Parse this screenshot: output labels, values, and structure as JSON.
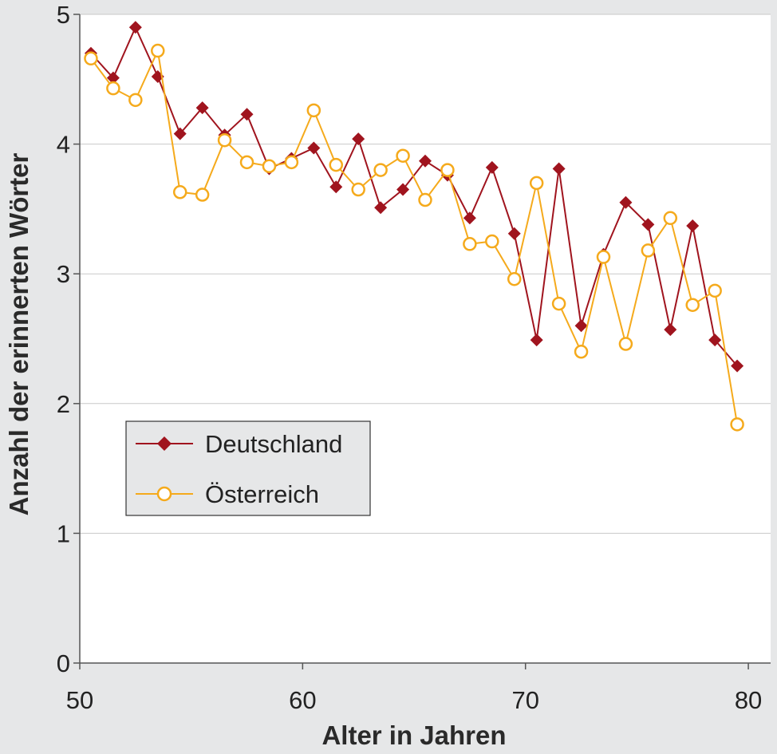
{
  "chart_data": {
    "type": "line",
    "xlabel": "Alter in Jahren",
    "ylabel": "Anzahl der erinnerten Wörter",
    "xlim": [
      50,
      81
    ],
    "ylim": [
      0,
      5
    ],
    "x_ticks": [
      "50",
      "60",
      "70",
      "80"
    ],
    "y_ticks": [
      "0",
      "1",
      "2",
      "3",
      "4",
      "5"
    ],
    "grid": "horizontal",
    "legend_position": "middle-left",
    "x": [
      50.5,
      51.5,
      52.5,
      53.5,
      54.5,
      55.5,
      56.5,
      57.5,
      58.5,
      59.5,
      60.5,
      61.5,
      62.5,
      63.5,
      64.5,
      65.5,
      66.5,
      67.5,
      68.5,
      69.5,
      70.5,
      71.5,
      72.5,
      73.5,
      74.5,
      75.5,
      76.5,
      77.5,
      78.5,
      79.5
    ],
    "series": [
      {
        "name": "Deutschland",
        "color": "#a0141e",
        "marker": "diamond",
        "values": [
          4.7,
          4.51,
          4.9,
          4.52,
          4.08,
          4.28,
          4.07,
          4.23,
          3.81,
          3.89,
          3.97,
          3.67,
          4.04,
          3.51,
          3.65,
          3.87,
          3.76,
          3.43,
          3.82,
          3.31,
          2.49,
          3.81,
          2.6,
          3.15,
          3.55,
          3.38,
          2.57,
          3.37,
          2.49,
          2.29
        ]
      },
      {
        "name": "Österreich",
        "color": "#f5aa1c",
        "marker": "circle",
        "values": [
          4.66,
          4.43,
          4.34,
          4.72,
          3.63,
          3.61,
          4.03,
          3.86,
          3.83,
          3.86,
          4.26,
          3.84,
          3.65,
          3.8,
          3.91,
          3.57,
          3.8,
          3.23,
          3.25,
          2.96,
          3.7,
          2.77,
          2.4,
          3.13,
          2.46,
          3.18,
          3.43,
          2.76,
          2.87,
          1.84
        ]
      }
    ]
  }
}
